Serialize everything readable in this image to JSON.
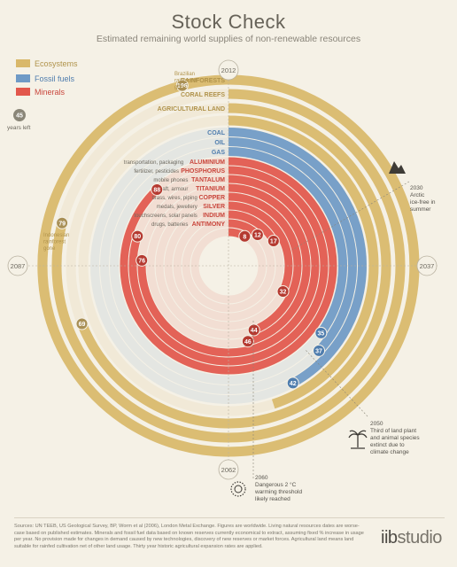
{
  "title": "Stock Check",
  "subtitle": "Estimated remaining world supplies of non-renewable resources",
  "legend": [
    {
      "label": "Ecosystems",
      "color": "#d9b86a"
    },
    {
      "label": "Fossil fuels",
      "color": "#6f9ac6"
    },
    {
      "label": "Minerals",
      "color": "#e2574c"
    }
  ],
  "years_left_caption": "years left",
  "year_labels": {
    "top": "2012",
    "right": "2037",
    "bottom": "2062",
    "left": "2087"
  },
  "annotations": {
    "arctic": {
      "year": "2030",
      "text": "Arctic ice-free in summer"
    },
    "extinction": {
      "year": "2050",
      "text": "Third of land plant and animal species extinct due to climate change"
    },
    "warming": {
      "year": "2060",
      "text": "Dangerous 2 °C warming threshold likely reached"
    },
    "brazil": "Brazilian rainforest gone",
    "indonesia": "Indonesian rainforest gone"
  },
  "sources": "Sources: UN TEEB, US Geological Survey, BP, Worm et al (2006), London Metal Exchange. Figures are worldwide. Living natural resources dates are worse-case based on published estimates. Minerals and fossil fuel data based on known reserves currently economical to extract, assuming fixed % increase in usage per year. No provision made for changes in demand caused by new technologies, discovery of new reserves or market forces. Agricultural land means land suitable for rainfed cultivation net of other land usage. Thirty year historic agricultural expansion rates are applied.",
  "brand": {
    "bold": "iib",
    "thin": "studio"
  },
  "chart_data": {
    "type": "radial-bar",
    "start_year": "2012",
    "unit": "years left",
    "series": [
      {
        "name": "Ecosystems",
        "color": "#d9b86a",
        "items": [
          {
            "label": "RAINFORESTS",
            "use": "",
            "value": 196,
            "note": "Brazilian rainforest gone"
          },
          {
            "label": "RAINFORESTS",
            "use": "",
            "value": 79,
            "note": "Indonesian rainforest gone"
          },
          {
            "label": "CORAL REEFS",
            "use": "",
            "value": 69
          },
          {
            "label": "AGRICULTURAL LAND",
            "use": "",
            "value": 45
          }
        ]
      },
      {
        "name": "Fossil fuels",
        "color": "#6f9ac6",
        "items": [
          {
            "label": "COAL",
            "use": "",
            "value": 42
          },
          {
            "label": "OIL",
            "use": "",
            "value": 37
          },
          {
            "label": "GAS",
            "use": "",
            "value": 35
          }
        ]
      },
      {
        "name": "Minerals",
        "color": "#e2574c",
        "items": [
          {
            "label": "ALUMINIUM",
            "use": "transportation, packaging",
            "value": 88
          },
          {
            "label": "PHOSPHORUS",
            "use": "fertilizer, pesticides",
            "value": 80
          },
          {
            "label": "TANTALUM",
            "use": "mobile phones",
            "value": 76
          },
          {
            "label": "TITANIUM",
            "use": "aircraft, armour",
            "value": 46
          },
          {
            "label": "COPPER",
            "use": "brass, wires, piping",
            "value": 44
          },
          {
            "label": "SILVER",
            "use": "medals, jewellery",
            "value": 32
          },
          {
            "label": "INDIUM",
            "use": "touchscreens, solar panels",
            "value": 17
          },
          {
            "label": "ANTIMONY",
            "use": "drugs, batteries",
            "value": 12
          },
          {
            "label": "",
            "use": "",
            "value": 8
          }
        ]
      }
    ]
  }
}
